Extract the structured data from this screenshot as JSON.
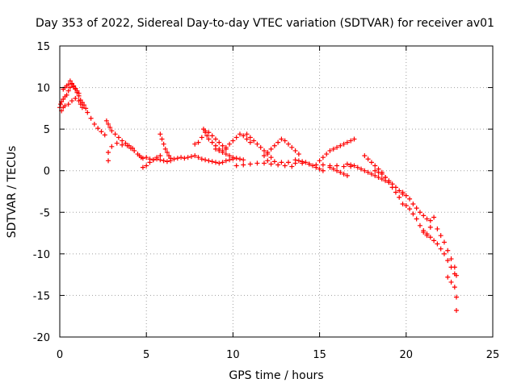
{
  "chart_data": {
    "type": "scatter",
    "title": "Day 353 of 2022, Sidereal Day-to-day VTEC variation (SDTVAR) for receiver av01",
    "xlabel": "GPS time / hours",
    "ylabel": "SDTVAR / TECUs",
    "xlim": [
      0,
      25
    ],
    "ylim": [
      -20,
      15
    ],
    "xticks": [
      0,
      5,
      10,
      15,
      20,
      25
    ],
    "yticks": [
      15,
      10,
      5,
      0,
      -5,
      -10,
      -15,
      -20
    ],
    "grid": true,
    "marker": "+",
    "series_color": "#ff0000",
    "series": [
      {
        "name": "SDTVAR",
        "x": [
          0.0,
          0.05,
          0.1,
          0.2,
          0.3,
          0.4,
          0.5,
          0.6,
          0.7,
          0.8,
          0.9,
          1.0,
          1.1,
          1.2,
          1.3,
          1.4,
          1.5,
          1.6,
          1.8,
          2.0,
          2.2,
          2.4,
          2.6,
          0.2,
          0.3,
          0.4,
          0.5,
          0.6,
          0.7,
          0.8,
          0.9,
          1.0,
          1.1,
          0.1,
          0.2,
          0.3,
          0.5,
          0.7,
          0.9,
          1.1,
          1.2,
          1.3,
          2.7,
          2.8,
          2.9,
          3.0,
          3.2,
          3.4,
          3.6,
          3.8,
          4.0,
          4.2,
          2.8,
          2.8,
          3.0,
          3.3,
          3.6,
          3.9,
          4.1,
          4.3,
          4.5,
          4.6,
          4.7,
          4.8,
          5.0,
          5.2,
          5.4,
          5.6,
          5.8,
          6.0,
          6.2,
          6.4,
          6.6,
          6.8,
          7.0,
          4.8,
          5.0,
          5.2,
          5.4,
          5.6,
          5.8,
          5.8,
          5.9,
          6.0,
          6.1,
          6.2,
          6.3,
          6.4,
          7.2,
          7.4,
          7.6,
          7.8,
          8.0,
          8.2,
          8.4,
          8.6,
          8.8,
          9.0,
          9.2,
          9.4,
          9.6,
          9.8,
          10.0,
          7.8,
          8.0,
          8.2,
          8.4,
          8.6,
          8.8,
          9.0,
          9.2,
          9.4,
          9.6,
          8.3,
          8.4,
          8.5,
          8.6,
          8.8,
          9.0,
          9.2,
          9.0,
          9.2,
          9.4,
          9.6,
          9.8,
          10.0,
          10.2,
          10.4,
          10.6,
          9.4,
          9.6,
          9.8,
          10.0,
          10.2,
          10.4,
          10.6,
          10.8,
          11.0,
          10.8,
          11.0,
          11.2,
          11.4,
          11.6,
          11.8,
          12.0,
          12.2,
          10.2,
          10.6,
          11.0,
          11.4,
          11.8,
          12.2,
          12.6,
          13.0,
          13.4,
          11.8,
          12.0,
          12.2,
          12.4,
          12.6,
          12.8,
          13.0,
          13.2,
          13.4,
          13.6,
          13.8,
          12.0,
          12.4,
          12.8,
          13.2,
          13.6,
          14.0,
          14.4,
          14.8,
          15.2,
          15.6,
          16.0,
          16.4,
          16.8,
          13.6,
          13.8,
          14.0,
          14.2,
          14.4,
          14.6,
          14.8,
          15.0,
          15.2,
          15.0,
          15.2,
          15.4,
          15.6,
          15.8,
          16.0,
          16.2,
          16.4,
          16.6,
          16.8,
          17.0,
          15.6,
          15.8,
          16.0,
          16.2,
          16.4,
          16.6,
          16.6,
          16.8,
          17.0,
          17.2,
          17.4,
          17.6,
          17.8,
          18.0,
          18.2,
          18.4,
          18.6,
          18.8,
          19.0,
          17.6,
          17.8,
          18.0,
          18.2,
          18.4,
          18.6,
          18.8,
          19.0,
          19.2,
          19.4,
          19.6,
          19.8,
          18.2,
          18.4,
          18.6,
          18.8,
          19.0,
          19.2,
          19.4,
          19.6,
          19.8,
          19.8,
          20.0,
          20.2,
          20.4,
          20.6,
          20.8,
          21.0,
          21.2,
          21.4,
          21.6,
          20.0,
          20.2,
          20.4,
          20.6,
          20.8,
          21.0,
          21.2,
          21.4,
          21.0,
          21.2,
          21.4,
          21.6,
          21.8,
          22.0,
          22.2,
          22.4,
          22.6,
          22.8,
          21.8,
          22.0,
          22.2,
          22.4,
          22.6,
          22.8,
          22.4,
          22.6,
          22.8,
          22.9,
          22.9,
          22.9
        ],
        "y": [
          7.6,
          8.0,
          8.3,
          8.6,
          8.9,
          9.1,
          9.6,
          10.0,
          10.4,
          10.1,
          9.8,
          9.4,
          9.0,
          8.5,
          8.2,
          7.9,
          7.5,
          7.0,
          6.3,
          5.6,
          5.1,
          4.7,
          4.3,
          9.8,
          10.0,
          10.2,
          10.4,
          10.8,
          10.5,
          10.2,
          9.9,
          9.6,
          9.3,
          7.2,
          7.6,
          7.8,
          8.0,
          8.4,
          8.7,
          8.4,
          8.0,
          7.6,
          6.0,
          5.6,
          5.2,
          4.8,
          4.4,
          4.0,
          3.6,
          3.3,
          3.0,
          2.7,
          2.2,
          1.2,
          2.9,
          3.3,
          3.1,
          3.0,
          2.7,
          2.4,
          2.0,
          1.8,
          1.6,
          1.5,
          1.6,
          1.4,
          1.3,
          1.4,
          1.3,
          1.2,
          1.1,
          1.2,
          1.4,
          1.5,
          1.6,
          0.4,
          0.6,
          1.0,
          1.3,
          1.6,
          1.8,
          4.4,
          3.8,
          3.2,
          2.6,
          2.2,
          1.8,
          1.5,
          1.5,
          1.6,
          1.7,
          1.8,
          1.6,
          1.4,
          1.3,
          1.2,
          1.1,
          1.0,
          0.9,
          1.0,
          1.2,
          1.3,
          1.4,
          3.2,
          3.4,
          4.0,
          4.8,
          4.6,
          4.2,
          3.8,
          3.4,
          3.0,
          2.6,
          5.0,
          4.6,
          4.2,
          3.8,
          3.4,
          3.0,
          2.6,
          2.6,
          2.4,
          2.2,
          2.0,
          1.8,
          1.6,
          1.5,
          1.4,
          1.3,
          2.4,
          2.8,
          3.2,
          3.6,
          4.0,
          4.4,
          4.2,
          3.8,
          3.4,
          4.4,
          4.0,
          3.6,
          3.2,
          2.8,
          2.4,
          2.0,
          1.6,
          0.6,
          0.7,
          0.8,
          0.9,
          0.9,
          0.8,
          0.7,
          0.6,
          0.5,
          1.8,
          2.2,
          2.6,
          3.0,
          3.4,
          3.8,
          3.6,
          3.2,
          2.8,
          2.4,
          2.0,
          1.2,
          1.1,
          1.0,
          1.0,
          0.9,
          0.9,
          0.8,
          0.7,
          0.7,
          0.6,
          0.6,
          0.5,
          0.5,
          1.3,
          1.2,
          1.1,
          1.0,
          0.8,
          0.6,
          0.4,
          0.2,
          0.0,
          1.2,
          1.6,
          2.0,
          2.4,
          2.6,
          2.8,
          3.0,
          3.2,
          3.4,
          3.6,
          3.8,
          0.4,
          0.2,
          0.0,
          -0.2,
          -0.4,
          -0.6,
          0.8,
          0.7,
          0.6,
          0.4,
          0.2,
          0.0,
          -0.2,
          -0.4,
          -0.6,
          -0.8,
          -1.0,
          -1.2,
          -1.4,
          1.8,
          1.4,
          1.0,
          0.6,
          0.2,
          -0.2,
          -0.8,
          -1.2,
          -1.6,
          -2.0,
          -2.4,
          -2.8,
          0.0,
          -0.2,
          -0.4,
          -0.8,
          -1.4,
          -2.0,
          -2.6,
          -3.2,
          -4.0,
          -2.6,
          -3.0,
          -3.4,
          -4.0,
          -4.5,
          -5.0,
          -5.4,
          -5.8,
          -6.0,
          -5.6,
          -4.2,
          -4.6,
          -5.2,
          -5.8,
          -6.6,
          -7.4,
          -7.8,
          -6.8,
          -7.2,
          -7.6,
          -8.0,
          -8.4,
          -8.8,
          -9.4,
          -10.0,
          -10.8,
          -11.6,
          -12.4,
          -7.0,
          -7.8,
          -8.6,
          -9.6,
          -10.6,
          -11.6,
          -12.8,
          -13.4,
          -14.0,
          -12.6,
          -15.2,
          -16.8
        ]
      }
    ]
  }
}
